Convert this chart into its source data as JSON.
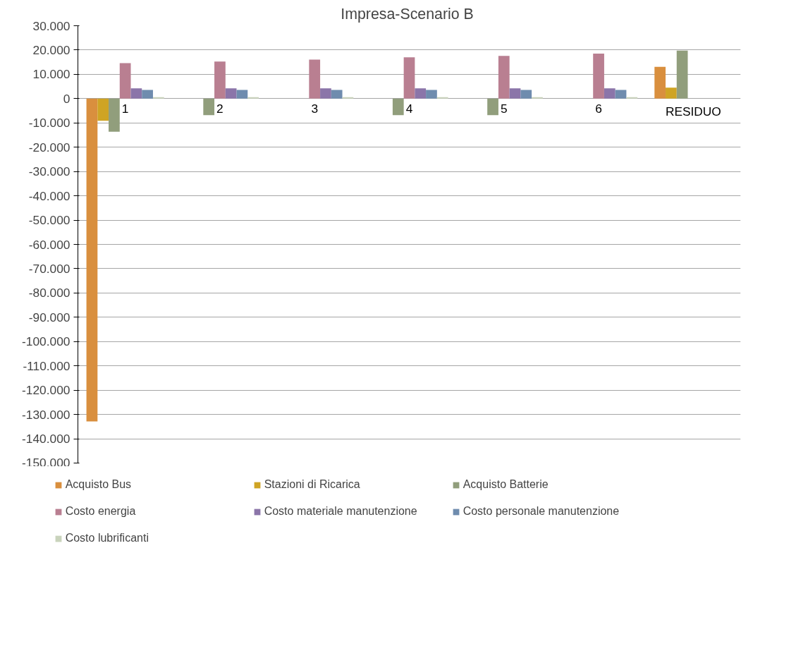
{
  "chart_data": {
    "type": "bar",
    "title": "Impresa-Scenario  B",
    "categories": [
      "1",
      "2",
      "3",
      "4",
      "5",
      "6",
      "RESIDUO"
    ],
    "series": [
      {
        "name": "Acquisto Bus",
        "color": "#d98f3e",
        "values": [
          -132900,
          null,
          null,
          null,
          null,
          null,
          13100
        ]
      },
      {
        "name": "Stazioni di Ricarica",
        "color": "#cfa424",
        "values": [
          -9100,
          null,
          null,
          null,
          null,
          null,
          4500
        ]
      },
      {
        "name": "Acquisto Batterie",
        "color": "#919e7c",
        "values": [
          -13600,
          -6800,
          null,
          -6800,
          -6800,
          null,
          19800
        ]
      },
      {
        "name": "Costo energia",
        "color": "#b97f91",
        "values": [
          14600,
          15300,
          16100,
          17000,
          17600,
          18500,
          null
        ]
      },
      {
        "name": "Costo materiale manutenzione",
        "color": "#8b75a9",
        "values": [
          4200,
          4200,
          4200,
          4200,
          4200,
          4200,
          null
        ]
      },
      {
        "name": "Costo personale manutenzione",
        "color": "#6f8cae",
        "values": [
          3600,
          3600,
          3600,
          3600,
          3600,
          3600,
          null
        ]
      },
      {
        "name": "Costo lubrificanti",
        "color": "#c9d3bc",
        "values": [
          600,
          600,
          600,
          600,
          600,
          600,
          null
        ]
      }
    ],
    "ylim": [
      -150000,
      30000
    ],
    "yticks": [
      {
        "value": -150000,
        "label": "-150.000"
      },
      {
        "value": -140000,
        "label": "-140.000"
      },
      {
        "value": -130000,
        "label": "-130.000"
      },
      {
        "value": -120000,
        "label": "-120.000"
      },
      {
        "value": -110000,
        "label": "-110.000"
      },
      {
        "value": -100000,
        "label": "-100.000"
      },
      {
        "value": -90000,
        "label": "-90.000"
      },
      {
        "value": -80000,
        "label": "-80.000"
      },
      {
        "value": -70000,
        "label": "-70.000"
      },
      {
        "value": -60000,
        "label": "-60.000"
      },
      {
        "value": -50000,
        "label": "-50.000"
      },
      {
        "value": -40000,
        "label": "-40.000"
      },
      {
        "value": -30000,
        "label": "-30.000"
      },
      {
        "value": -20000,
        "label": "-20.000"
      },
      {
        "value": -10000,
        "label": "-10.000"
      },
      0,
      {
        "value": 10000,
        "label": "10.000"
      },
      {
        "value": 20000,
        "label": "20.000"
      },
      {
        "value": 30000,
        "label": "30.000"
      }
    ],
    "grid": "y",
    "legend": "bottom"
  }
}
